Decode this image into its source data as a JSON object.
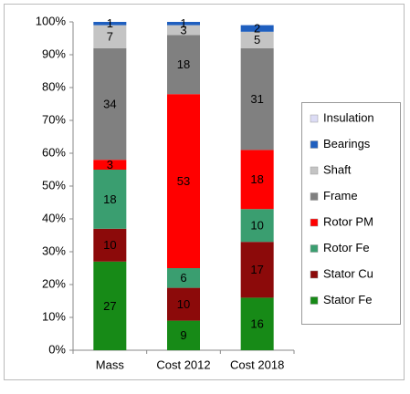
{
  "chart_data": {
    "type": "stacked_bar",
    "categories": [
      "Mass",
      "Cost 2012",
      "Cost 2018"
    ],
    "series": [
      {
        "name": "Stator Fe",
        "color": "#178a17",
        "values": [
          27,
          9,
          16
        ]
      },
      {
        "name": "Stator Cu",
        "color": "#8c0a0a",
        "values": [
          10,
          10,
          17
        ]
      },
      {
        "name": "Rotor Fe",
        "color": "#3a9e70",
        "values": [
          18,
          6,
          10
        ]
      },
      {
        "name": "Rotor PM",
        "color": "#ff0000",
        "values": [
          3,
          53,
          18
        ]
      },
      {
        "name": "Frame",
        "color": "#808080",
        "values": [
          34,
          18,
          31
        ]
      },
      {
        "name": "Shaft",
        "color": "#c4c4c4",
        "values": [
          7,
          3,
          5
        ]
      },
      {
        "name": "Bearings",
        "color": "#1f5fbf",
        "values": [
          1,
          1,
          2
        ]
      },
      {
        "name": "Insulation",
        "color": "#dcdcf5",
        "values": [
          null,
          null,
          null
        ]
      }
    ],
    "ylim": [
      0,
      100
    ],
    "yticks": [
      {
        "value": 0,
        "label": "0%"
      },
      {
        "value": 10,
        "label": "10%"
      },
      {
        "value": 20,
        "label": "20%"
      },
      {
        "value": 30,
        "label": "30%"
      },
      {
        "value": 40,
        "label": "40%"
      },
      {
        "value": 50,
        "label": "50%"
      },
      {
        "value": 60,
        "label": "60%"
      },
      {
        "value": 70,
        "label": "70%"
      },
      {
        "value": 80,
        "label": "80%"
      },
      {
        "value": 90,
        "label": "90%"
      },
      {
        "value": 100,
        "label": "100%"
      }
    ],
    "grid": false,
    "legend": "right"
  }
}
